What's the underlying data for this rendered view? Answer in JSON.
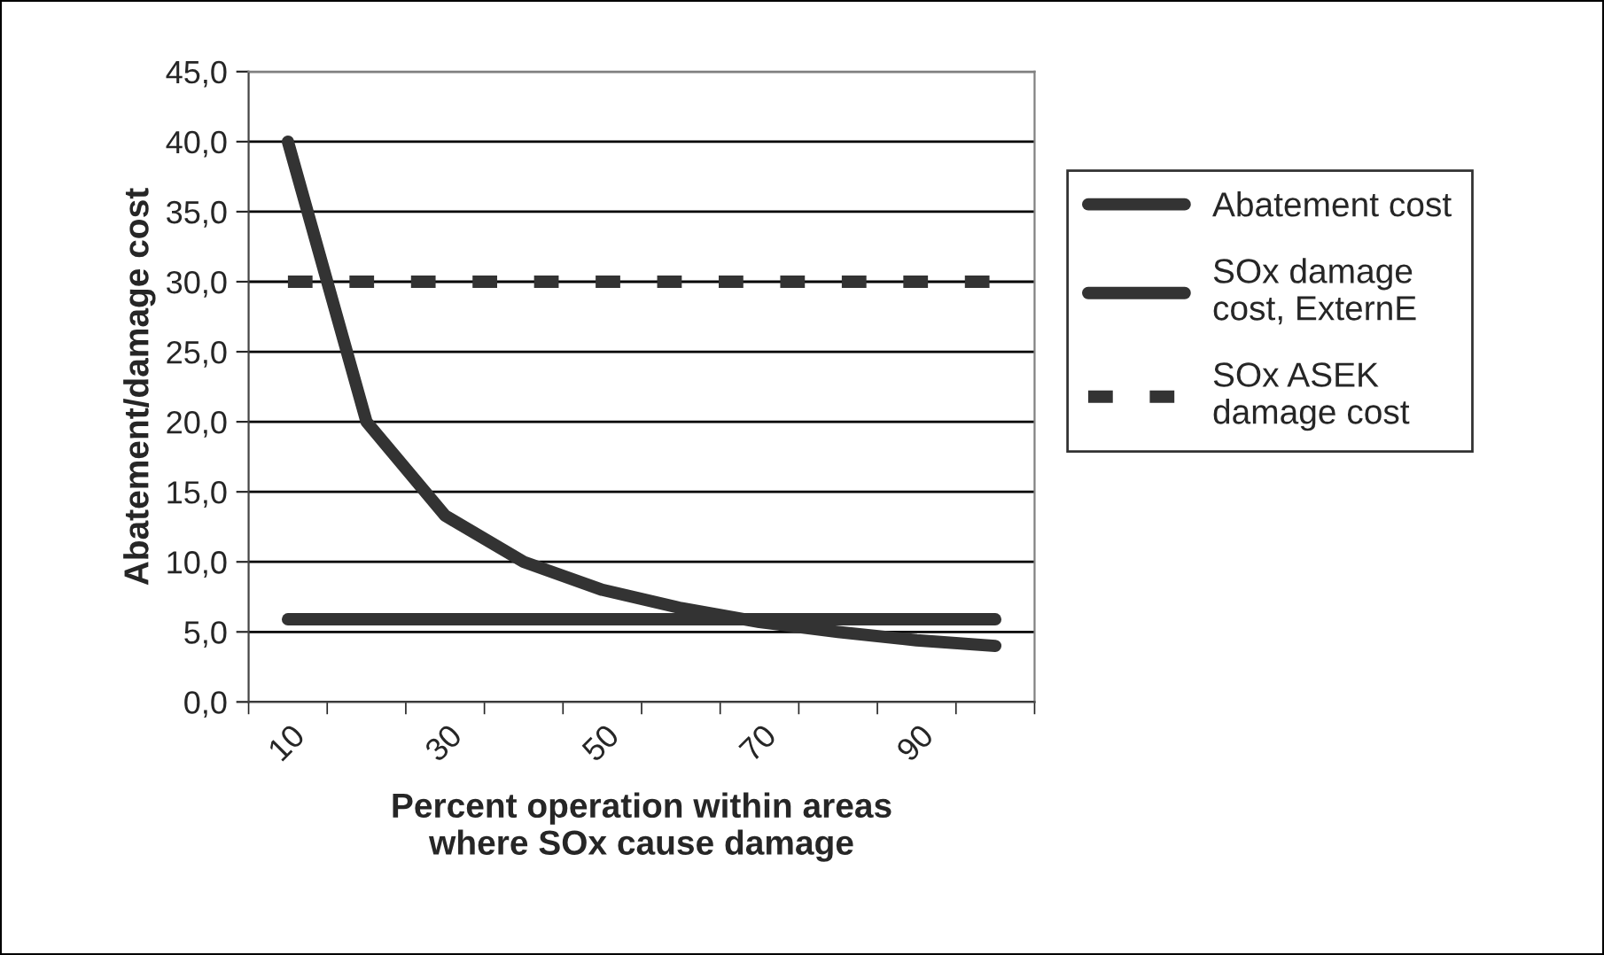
{
  "chart_data": {
    "type": "line",
    "xlabel": "Percent operation within areas\nwhere SOx cause damage",
    "ylabel": "Abatement/damage cost",
    "categories": [
      "10",
      null,
      "30",
      null,
      "50",
      null,
      "70",
      null,
      "90",
      null
    ],
    "series": [
      {
        "name": "Abatement cost",
        "color": "#333333",
        "line_style": "solid",
        "values": [
          40.0,
          20.0,
          13.3,
          10.0,
          8.0,
          6.7,
          5.7,
          5.0,
          4.4,
          4.0
        ]
      },
      {
        "name": "SOx damage\ncost, ExternE",
        "color": "#333333",
        "line_style": "solid",
        "values": [
          5.9,
          5.9,
          5.9,
          5.9,
          5.9,
          5.9,
          5.9,
          5.9,
          5.9,
          5.9
        ]
      },
      {
        "name": "SOx ASEK\ndamage cost",
        "color": "#333333",
        "line_style": "dashed",
        "values": [
          30.0,
          30.0,
          30.0,
          30.0,
          30.0,
          30.0,
          30.0,
          30.0,
          30.0,
          30.0
        ]
      }
    ],
    "ylim": [
      0,
      45
    ],
    "yticks": [
      {
        "value": 0,
        "label": "0,0"
      },
      {
        "value": 5,
        "label": "5,0"
      },
      {
        "value": 10,
        "label": "10,0"
      },
      {
        "value": 15,
        "label": "15,0"
      },
      {
        "value": 20,
        "label": "20,0"
      },
      {
        "value": 25,
        "label": "25,0"
      },
      {
        "value": 30,
        "label": "30,0"
      },
      {
        "value": 35,
        "label": "35,0"
      },
      {
        "value": 40,
        "label": "40,0"
      },
      {
        "value": 45,
        "label": "45,0"
      }
    ],
    "grid": "y",
    "legend": "right",
    "marker": "none"
  }
}
